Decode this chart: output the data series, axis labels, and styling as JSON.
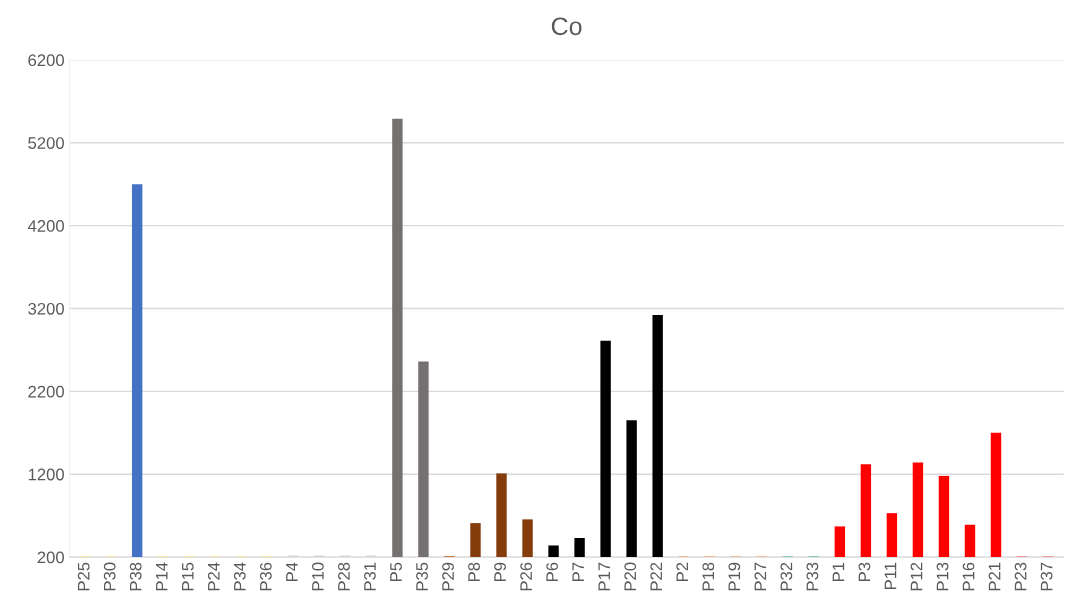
{
  "chart_data": {
    "type": "bar",
    "title": "Co",
    "categories": [
      "P25",
      "P30",
      "P38",
      "P14",
      "P15",
      "P24",
      "P34",
      "P36",
      "P4",
      "P10",
      "P28",
      "P31",
      "P5",
      "P35",
      "P29",
      "P8",
      "P9",
      "P26",
      "P6",
      "P7",
      "P17",
      "P20",
      "P22",
      "P2",
      "P18",
      "P19",
      "P27",
      "P32",
      "P33",
      "P1",
      "P3",
      "P11",
      "P12",
      "P13",
      "P16",
      "P21",
      "P23",
      "P37"
    ],
    "values": [
      210,
      210,
      4700,
      210,
      210,
      210,
      210,
      210,
      220,
      220,
      220,
      220,
      5490,
      2560,
      210,
      610,
      1210,
      655,
      340,
      430,
      2810,
      1850,
      3120,
      210,
      210,
      210,
      210,
      210,
      210,
      570,
      1320,
      730,
      1340,
      1180,
      590,
      1700,
      210,
      210
    ],
    "colors": [
      "#ffe699",
      "#ffe699",
      "#4472c4",
      "#ffe699",
      "#ffe699",
      "#ffe699",
      "#ffe699",
      "#ffe699",
      "#d9d9d9",
      "#d9d9d9",
      "#d9d9d9",
      "#d9d9d9",
      "#767171",
      "#767171",
      "#c55a11",
      "#843c0c",
      "#843c0c",
      "#843c0c",
      "#000000",
      "#000000",
      "#000000",
      "#000000",
      "#000000",
      "#f4b183",
      "#f4b183",
      "#f4b183",
      "#f4b183",
      "#70c1a0",
      "#70c1a0",
      "#ff0000",
      "#ff0000",
      "#ff0000",
      "#ff0000",
      "#ff0000",
      "#ff0000",
      "#ff0000",
      "#ff7c80",
      "#ff7c80"
    ],
    "ylim": [
      200,
      6200
    ],
    "yticks": [
      200,
      1200,
      2200,
      3200,
      4200,
      5200,
      6200
    ],
    "grid": "y",
    "legend": false
  }
}
